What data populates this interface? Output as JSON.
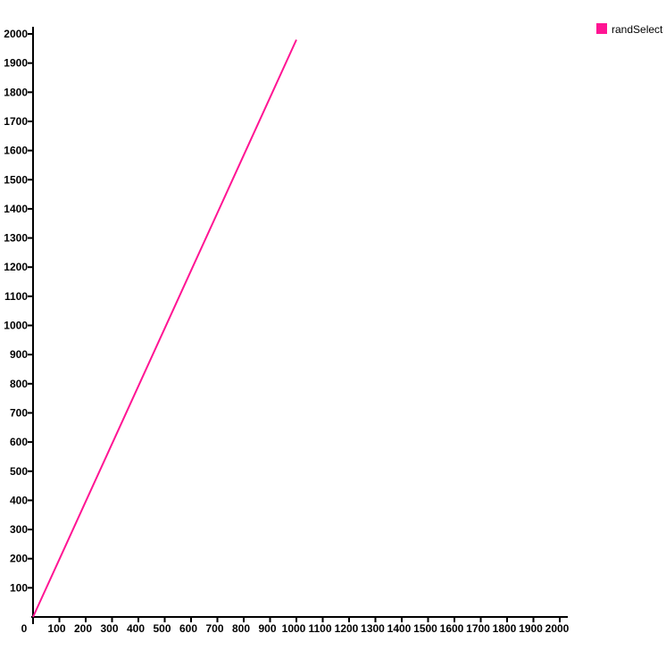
{
  "chart_data": {
    "type": "line",
    "title": "",
    "xlabel": "",
    "ylabel": "",
    "origin_label": "0",
    "xlim": [
      0,
      2000
    ],
    "ylim": [
      0,
      2000
    ],
    "x_ticks": [
      100,
      200,
      300,
      400,
      500,
      600,
      700,
      800,
      900,
      1000,
      1100,
      1200,
      1300,
      1400,
      1500,
      1600,
      1700,
      1800,
      1900,
      2000
    ],
    "x_tick_labels": [
      "100",
      "200",
      "300",
      "400",
      "500",
      "600",
      "700",
      "800",
      "900",
      "1000",
      "1100",
      "1200",
      "1300",
      "1400",
      "1500",
      "1600",
      "1700",
      "1800",
      "1900",
      "2000"
    ],
    "y_ticks": [
      100,
      200,
      300,
      400,
      500,
      600,
      700,
      800,
      900,
      1000,
      1100,
      1200,
      1300,
      1400,
      1500,
      1600,
      1700,
      1800,
      1900,
      2000
    ],
    "y_tick_labels": [
      "100",
      "200",
      "300",
      "400",
      "500",
      "600",
      "700",
      "800",
      "900",
      "1000",
      "1100",
      "1200",
      "1300",
      "1400",
      "1500",
      "1600",
      "1700",
      "1800",
      "1900",
      "2000"
    ],
    "grid": false,
    "legend_position": "top-right",
    "series": [
      {
        "name": "randSelect",
        "color": "#ff1493",
        "x": [
          0,
          100,
          200,
          300,
          400,
          500,
          600,
          700,
          800,
          900,
          1000
        ],
        "y": [
          0,
          198,
          396,
          594,
          792,
          990,
          1188,
          1386,
          1584,
          1782,
          1980
        ]
      }
    ]
  }
}
